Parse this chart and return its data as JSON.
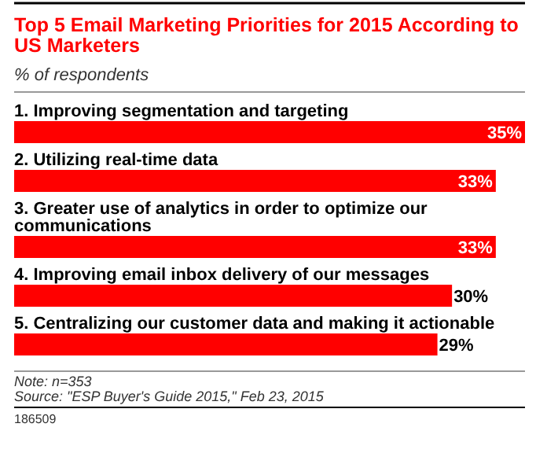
{
  "chart_data": {
    "type": "bar",
    "orientation": "horizontal",
    "title": "Top 5 Email Marketing Priorities for 2015 According to US Marketers",
    "subtitle": "% of respondents",
    "categories": [
      "1. Improving segmentation and targeting",
      "2. Utilizing real-time data",
      "3. Greater use of analytics in order to optimize our communications",
      "4. Improving email inbox delivery of our messages",
      "5. Centralizing our customer data and making it actionable"
    ],
    "values": [
      35,
      33,
      33,
      30,
      29
    ],
    "value_labels": [
      "35%",
      "33%",
      "33%",
      "30%",
      "29%"
    ],
    "color": "#ff0000",
    "annotations": [
      "Note: n=353",
      "Source: \"ESP Buyer's Guide 2015,\" Feb 23, 2015",
      "186509"
    ]
  }
}
